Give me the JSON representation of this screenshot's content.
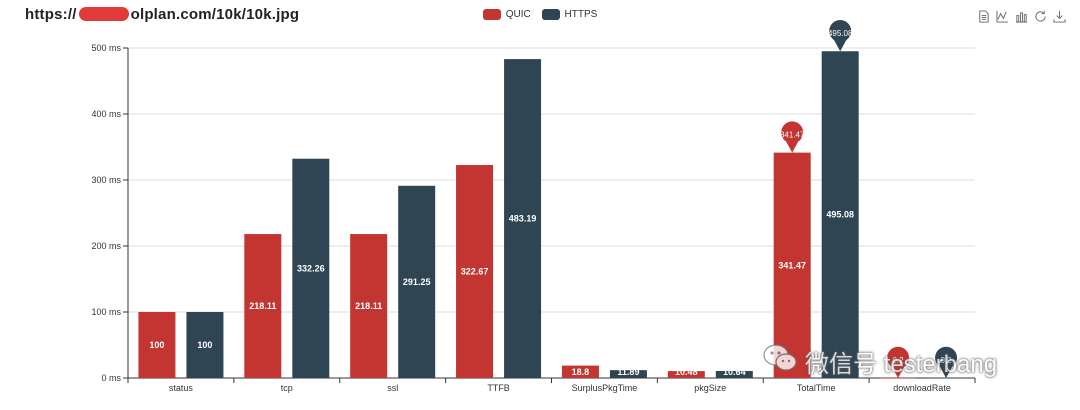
{
  "page_title": {
    "prefix": "https://",
    "suffix": "olplan.com/10k/10k.jpg"
  },
  "toolbox": [
    "data-view-icon",
    "line-chart-icon",
    "bar-chart-icon",
    "refresh-icon",
    "download-icon"
  ],
  "watermark": {
    "text": "微信号 testerbang"
  },
  "colors": {
    "quic": "#c23531",
    "https": "#2f4554"
  },
  "chart_data": {
    "type": "bar",
    "categories": [
      "status",
      "tcp",
      "ssl",
      "TTFB",
      "SurplusPkgTime",
      "pkgSize",
      "TotalTime",
      "downloadRate"
    ],
    "series": [
      {
        "name": "QUIC",
        "values": [
          100,
          218.11,
          218.11,
          322.67,
          18.8,
          10.48,
          341.47,
          0.2
        ]
      },
      {
        "name": "HTTPS",
        "values": [
          100,
          332.26,
          291.25,
          483.19,
          11.89,
          10.64,
          495.08,
          0.2
        ]
      }
    ],
    "max_markers": [
      {
        "series": "QUIC",
        "category": "TotalTime",
        "value": 341.47
      },
      {
        "series": "HTTPS",
        "category": "TotalTime",
        "value": 495.08
      }
    ],
    "min_markers": [
      {
        "series": "QUIC",
        "category": "downloadRate",
        "label": "0.2"
      },
      {
        "series": "HTTPS",
        "category": "downloadRate",
        "label": "0.2"
      }
    ],
    "y_ticks": [
      "0 ms",
      "100 ms",
      "200 ms",
      "300 ms",
      "400 ms",
      "500 ms"
    ],
    "ylim": [
      0,
      500
    ],
    "title": "",
    "xlabel": "",
    "ylabel": ""
  }
}
